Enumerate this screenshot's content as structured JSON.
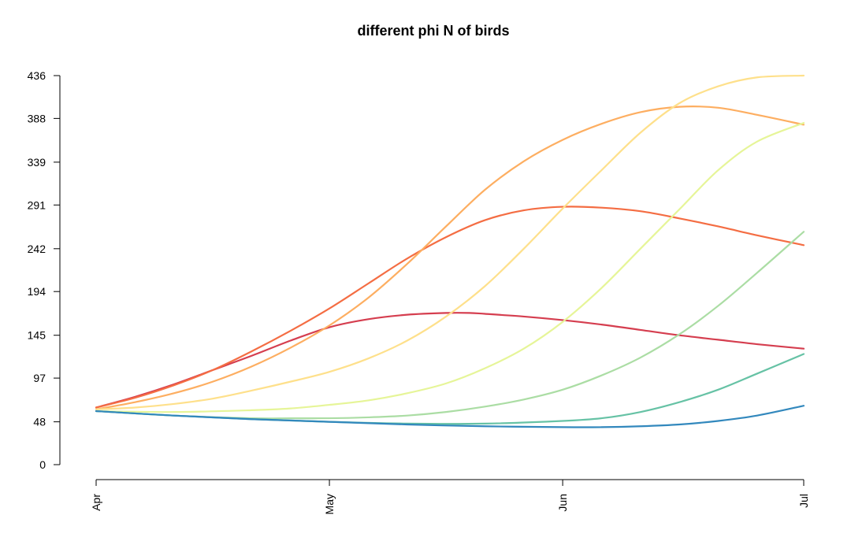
{
  "chart_data": {
    "type": "line",
    "title": "different phi N of birds",
    "xlabel": "",
    "ylabel": "",
    "x_tick_labels": [
      "Apr",
      "May",
      "Jun",
      "Jul"
    ],
    "x_tick_days": [
      0,
      30,
      60,
      91
    ],
    "x_range_days": [
      0,
      91
    ],
    "y_ticks": [
      0,
      48,
      97,
      145,
      194,
      242,
      291,
      339,
      388,
      436
    ],
    "ylim": [
      0,
      436
    ],
    "grid": false,
    "legend": "none",
    "series": [
      {
        "color": "#d53e4f",
        "x": [
          0,
          5,
          10,
          15,
          20,
          25,
          30,
          35,
          40,
          45,
          48,
          50,
          55,
          60,
          65,
          70,
          75,
          80,
          85,
          91
        ],
        "values": [
          64,
          76,
          90,
          106,
          122,
          139,
          154,
          163,
          168,
          170,
          170,
          169,
          166,
          162,
          157,
          151,
          145,
          140,
          135,
          130
        ]
      },
      {
        "color": "#f46d43",
        "x": [
          0,
          5,
          10,
          15,
          20,
          25,
          30,
          35,
          40,
          45,
          50,
          55,
          60,
          65,
          70,
          75,
          80,
          85,
          91
        ],
        "values": [
          64,
          75,
          89,
          106,
          127,
          150,
          175,
          203,
          231,
          255,
          274,
          285,
          289,
          288,
          284,
          276,
          267,
          257,
          246
        ]
      },
      {
        "color": "#fdae61",
        "x": [
          0,
          5,
          10,
          15,
          20,
          25,
          30,
          35,
          40,
          45,
          50,
          55,
          60,
          65,
          70,
          75,
          80,
          85,
          91
        ],
        "values": [
          62,
          70,
          80,
          93,
          110,
          131,
          156,
          187,
          225,
          267,
          308,
          340,
          364,
          382,
          395,
          401,
          400,
          392,
          381
        ]
      },
      {
        "color": "#fee08b",
        "x": [
          0,
          5,
          10,
          15,
          20,
          25,
          30,
          35,
          40,
          45,
          50,
          55,
          60,
          65,
          70,
          75,
          80,
          85,
          91
        ],
        "values": [
          62,
          64,
          68,
          74,
          83,
          93,
          104,
          119,
          139,
          166,
          200,
          242,
          287,
          330,
          372,
          405,
          424,
          434,
          436
        ]
      },
      {
        "color": "#e6f598",
        "x": [
          0,
          10,
          20,
          25,
          30,
          35,
          40,
          45,
          50,
          55,
          60,
          65,
          70,
          75,
          80,
          85,
          91
        ],
        "values": [
          60,
          59,
          61,
          63,
          67,
          72,
          80,
          91,
          108,
          130,
          160,
          198,
          242,
          286,
          330,
          362,
          383
        ]
      },
      {
        "color": "#abdda4",
        "x": [
          0,
          10,
          20,
          25,
          30,
          35,
          40,
          45,
          50,
          55,
          60,
          65,
          70,
          75,
          80,
          85,
          91
        ],
        "values": [
          60,
          55,
          52,
          52,
          52,
          53,
          55,
          59,
          65,
          73,
          84,
          100,
          120,
          146,
          178,
          215,
          261
        ]
      },
      {
        "color": "#66c2a5",
        "x": [
          0,
          10,
          20,
          30,
          40,
          50,
          60,
          65,
          70,
          75,
          80,
          85,
          91
        ],
        "values": [
          60,
          55,
          51,
          48,
          46,
          46,
          49,
          52,
          59,
          70,
          84,
          102,
          124
        ]
      },
      {
        "color": "#3288bd",
        "x": [
          0,
          10,
          20,
          30,
          40,
          50,
          60,
          65,
          70,
          75,
          80,
          85,
          91
        ],
        "values": [
          60,
          55,
          51,
          48,
          45,
          43,
          42,
          42,
          43,
          45,
          49,
          55,
          66
        ]
      }
    ]
  }
}
